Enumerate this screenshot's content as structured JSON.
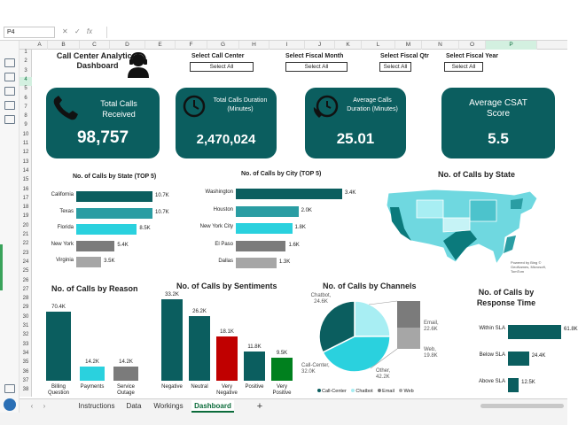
{
  "namebox": "P4",
  "fx_label": "fx",
  "columns": [
    "A",
    "B",
    "C",
    "D",
    "E",
    "F",
    "G",
    "H",
    "I",
    "J",
    "K",
    "L",
    "M",
    "N",
    "O",
    "P"
  ],
  "rows": [
    "1",
    "2",
    "3",
    "4",
    "5",
    "6",
    "7",
    "8",
    "9",
    "10",
    "11",
    "12",
    "13",
    "14",
    "15",
    "16",
    "17",
    "18",
    "19",
    "20",
    "21",
    "22",
    "23",
    "24",
    "25",
    "26",
    "27",
    "28",
    "29",
    "30",
    "31",
    "32",
    "33",
    "34",
    "35",
    "36",
    "37",
    "38"
  ],
  "dashboard_title": "Call Center Analytical Dashboard",
  "slicers": [
    {
      "label": "Select Call Center",
      "value": "Select All"
    },
    {
      "label": "Select Fiscal Month",
      "value": "Select All"
    },
    {
      "label": "Select Fiscal Qtr",
      "value": "Select All"
    },
    {
      "label": "Select Fiscal Year",
      "value": "Select All"
    }
  ],
  "kpis": [
    {
      "label": "Total Calls Received",
      "value": "98,757"
    },
    {
      "label": "Total Calls Duration (Minutes)",
      "value": "2,470,024"
    },
    {
      "label": "Average Calls Duration (Minutes)",
      "value": "25.01"
    },
    {
      "label": "Average CSAT Score",
      "value": "5.5"
    }
  ],
  "chart_data": [
    {
      "type": "bar",
      "orientation": "horizontal",
      "title": "No. of Calls by State (TOP 5)",
      "categories": [
        "California",
        "Texas",
        "Florida",
        "New York",
        "Virginia"
      ],
      "values": [
        10.7,
        10.7,
        8.5,
        5.4,
        3.5
      ],
      "labels": [
        "10.7K",
        "10.7K",
        "8.5K",
        "5.4K",
        "3.5K"
      ],
      "colors": [
        "#0b5e5f",
        "#2a9da3",
        "#2ad1de",
        "#7b7b7b",
        "#a6a6a6"
      ]
    },
    {
      "type": "bar",
      "orientation": "horizontal",
      "title": "No. of Calls by City (TOP 5)",
      "categories": [
        "Washington",
        "Houston",
        "New York City",
        "El Paso",
        "Dallas"
      ],
      "values": [
        3.4,
        2.0,
        1.8,
        1.6,
        1.3
      ],
      "labels": [
        "3.4K",
        "2.0K",
        "1.8K",
        "1.6K",
        "1.3K"
      ],
      "colors": [
        "#0b5e5f",
        "#2a9da3",
        "#2ad1de",
        "#7b7b7b",
        "#a6a6a6"
      ]
    },
    {
      "type": "bar",
      "title": "No. of Calls by Reason",
      "categories": [
        "Billing Question",
        "Payments",
        "Service Outage"
      ],
      "values": [
        70.4,
        14.2,
        14.2
      ],
      "labels": [
        "70.4K",
        "14.2K",
        "14.2K"
      ],
      "colors": [
        "#0b5e5f",
        "#2ad1de",
        "#7b7b7b"
      ]
    },
    {
      "type": "bar",
      "title": "No. of Calls by Sentiments",
      "categories": [
        "Negative",
        "Neutral",
        "Very Negative",
        "Positive",
        "Very Positive"
      ],
      "values": [
        33.2,
        26.2,
        18.1,
        11.8,
        9.5
      ],
      "labels": [
        "33.2K",
        "26.2K",
        "18.1K",
        "11.8K",
        "9.5K"
      ],
      "colors": [
        "#0b5e5f",
        "#0b5e5f",
        "#c00000",
        "#0b5e5f",
        "#00801e"
      ]
    },
    {
      "type": "pie",
      "title": "No. of Calls by Channels",
      "categories": [
        "Call-Center",
        "Chatbot",
        "Email",
        "Web",
        "Other"
      ],
      "values": [
        32.0,
        24.6,
        22.6,
        19.8,
        42.2
      ],
      "labels": [
        "Call-Center, 32.0K",
        "Chatbot, 24.6K",
        "Email, 22.6K",
        "Web, 19.8K",
        "Other, 42.2K"
      ],
      "legend": [
        "Call-Center",
        "Chatbot",
        "Email",
        "Web"
      ],
      "colors": [
        "#0b5e5f",
        "#a8eef3",
        "#7b7b7b",
        "#a6a6a6",
        "#2ad1de"
      ]
    },
    {
      "type": "bar",
      "orientation": "horizontal",
      "title": "No. of Calls by Response Time",
      "categories": [
        "Within SLA",
        "Below SLA",
        "Above SLA"
      ],
      "values": [
        61.8,
        24.4,
        12.5
      ],
      "labels": [
        "61.8K",
        "24.4K",
        "12.5K"
      ],
      "colors": [
        "#0b5e5f",
        "#0b5e5f",
        "#0b5e5f"
      ]
    }
  ],
  "map": {
    "title": "No. of Calls by State",
    "credit": "Powered by Bing © GeoNames, Microsoft, TomTom"
  },
  "tabs": [
    "Instructions",
    "Data",
    "Workings",
    "Dashboard"
  ],
  "active_tab": "Dashboard",
  "accent": "#0b5e5f"
}
